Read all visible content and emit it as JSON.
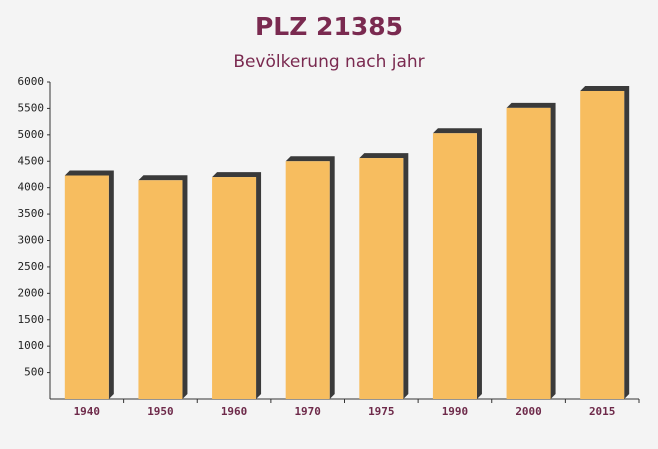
{
  "chart_data": {
    "type": "bar",
    "title": "PLZ 21385",
    "subtitle": "Bevölkerung nach jahr",
    "categories": [
      "1940",
      "1950",
      "1960",
      "1970",
      "1975",
      "1990",
      "2000",
      "2015"
    ],
    "values": [
      4230,
      4140,
      4200,
      4500,
      4560,
      5030,
      5510,
      5830
    ],
    "color": "#f7bd5f",
    "shadow_color": "#3a3a3a",
    "ylim": [
      0,
      6000
    ],
    "yticks": [
      500,
      1000,
      1500,
      2000,
      2500,
      3000,
      3500,
      4000,
      4500,
      5000,
      5500,
      6000
    ]
  }
}
